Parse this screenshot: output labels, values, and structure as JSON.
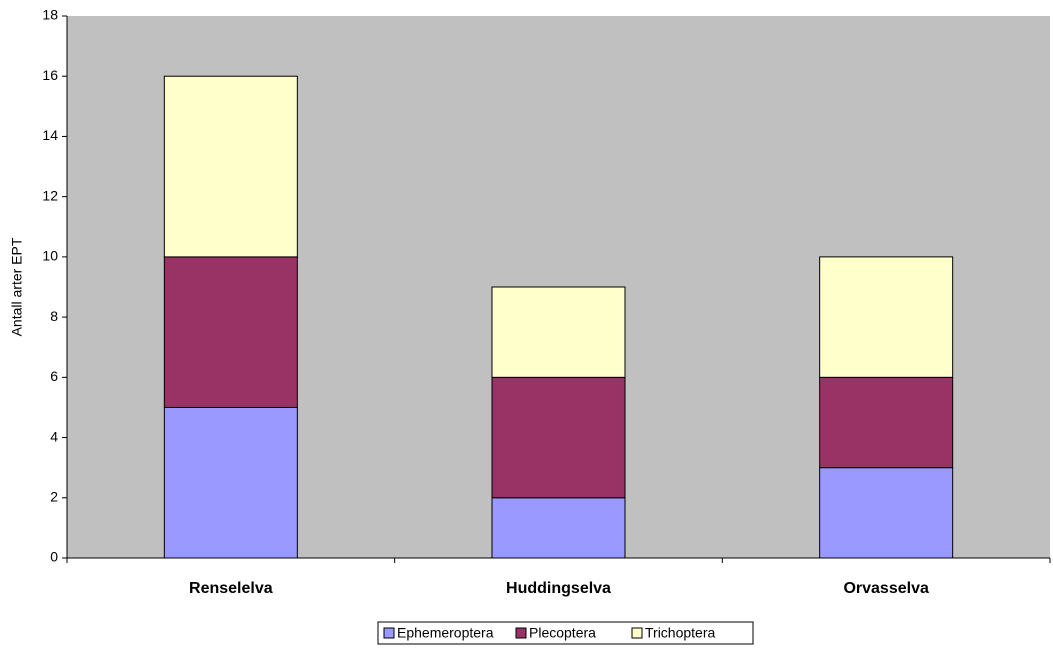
{
  "chart_data": {
    "type": "stacked_bar",
    "y_label": "Antall arter EPT",
    "categories": [
      "Renselelva",
      "Huddingselva",
      "Orvasselva"
    ],
    "series": [
      {
        "name": "Ephemeroptera",
        "color": "#9999ff",
        "values": [
          5,
          2,
          3
        ]
      },
      {
        "name": "Plecoptera",
        "color": "#993366",
        "values": [
          5,
          4,
          3
        ]
      },
      {
        "name": "Trichoptera",
        "color": "#ffffcc",
        "values": [
          6,
          3,
          4
        ]
      }
    ],
    "ylim": [
      0,
      18
    ],
    "yticks": [
      0,
      2,
      4,
      6,
      8,
      10,
      12,
      14,
      16,
      18
    ],
    "plot_background": "#c0c0c0",
    "legend": "bottom"
  }
}
